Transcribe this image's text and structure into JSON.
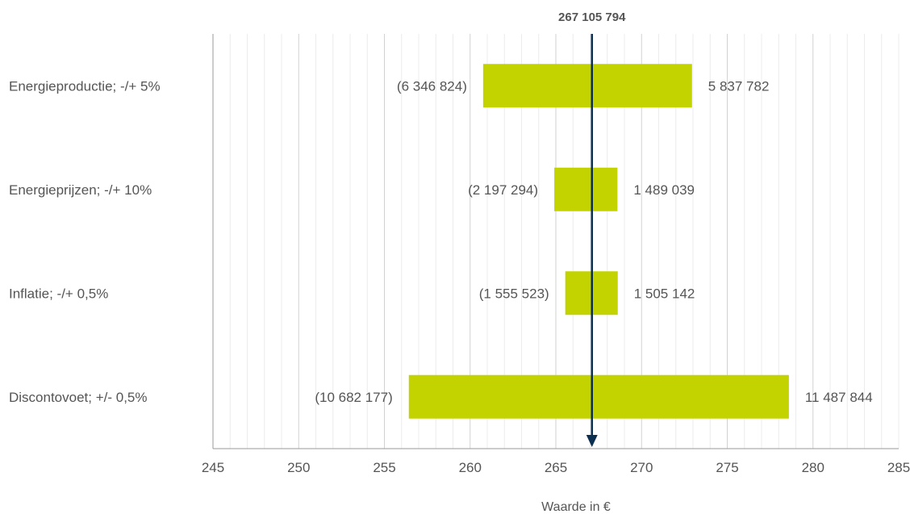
{
  "chart_data": {
    "type": "bar",
    "subtype": "tornado",
    "base_value": 267.105794,
    "base_label": "267 105 794",
    "xlabel": "Waarde in €",
    "xlim": [
      245,
      285
    ],
    "xticks": [
      245,
      250,
      255,
      260,
      265,
      270,
      275,
      280,
      285
    ],
    "tick_labels": [
      "245",
      "250",
      "255",
      "260",
      "265",
      "270",
      "275",
      "280",
      "285"
    ],
    "grid": true,
    "bar_color": "#c3d300",
    "base_line_color": "#0d2f4f",
    "categories": [
      "Energieproductie; -/+ 5%",
      "Energieprijzen; -/+ 10%",
      "Inflatie; -/+ 0,5%",
      "Discontovoet; +/- 0,5%"
    ],
    "low_delta": [
      -6346824,
      -2197294,
      -1555523,
      -10682177
    ],
    "high_delta": [
      5837782,
      1489039,
      1505142,
      11487844
    ],
    "low_labels": [
      "(6 346 824)",
      "(2 197 294)",
      "(1 555 523)",
      "(10 682 177)"
    ],
    "high_labels": [
      "5 837 782",
      "1 489 039",
      "1 505 142",
      "11 487 844"
    ]
  }
}
